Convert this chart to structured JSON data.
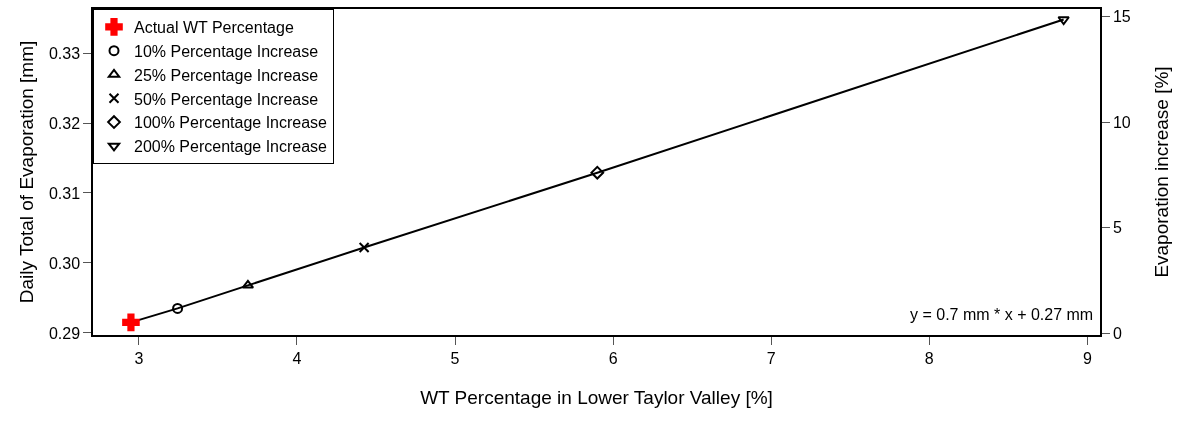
{
  "chart_data": {
    "type": "scatter",
    "xlabel": "WT Percentage in Lower Taylor Valley [%]",
    "ylabel": "Daily Total of Evaporation [mm]",
    "y2label": "Evaporation increase [%]",
    "xlim": [
      2.71,
      9.08
    ],
    "xticks": [
      3,
      4,
      5,
      6,
      7,
      8,
      9
    ],
    "ylim": [
      0.2897,
      0.3363
    ],
    "yticks": [
      {
        "value": 0.29,
        "label": "0.29"
      },
      {
        "value": 0.3,
        "label": "0.30"
      },
      {
        "value": 0.31,
        "label": "0.31"
      },
      {
        "value": 0.32,
        "label": "0.32"
      },
      {
        "value": 0.33,
        "label": "0.33"
      }
    ],
    "y2lim": [
      -0.08,
      15.36
    ],
    "y2ticks": [
      0,
      5,
      10,
      15
    ],
    "legend": "top left",
    "series": [
      {
        "type": "line",
        "color": "#000000",
        "marker": "none",
        "line_style": "solid",
        "x": [
          2.95,
          3.245,
          3.69,
          4.425,
          5.9,
          8.85
        ],
        "values": [
          0.2915,
          0.2935,
          0.2968,
          0.3022,
          0.3129,
          0.3348
        ]
      },
      {
        "name": "Actual WT Percentage",
        "color": "#ff0000",
        "marker": "cross",
        "x": [
          2.95
        ],
        "values": [
          0.2915
        ]
      },
      {
        "name": "10% Percentage Increase",
        "color": "#000000",
        "marker": "circle",
        "x": [
          3.245
        ],
        "values": [
          0.2935
        ]
      },
      {
        "name": "25% Percentage Increase",
        "color": "#000000",
        "marker": "triangle",
        "x": [
          3.69
        ],
        "values": [
          0.2968
        ]
      },
      {
        "name": "50% Percentage Increase",
        "color": "#000000",
        "marker": "x",
        "x": [
          4.425
        ],
        "values": [
          0.3022
        ]
      },
      {
        "name": "100% Percentage Increase",
        "color": "#000000",
        "marker": "diamond",
        "x": [
          5.9
        ],
        "values": [
          0.3129
        ]
      },
      {
        "name": "200% Percentage Increase",
        "color": "#000000",
        "marker": "triangle-down",
        "x": [
          8.85
        ],
        "values": [
          0.3348
        ]
      }
    ],
    "annotations": [
      "y = 0.7 mm * x + 0.27 mm"
    ]
  }
}
